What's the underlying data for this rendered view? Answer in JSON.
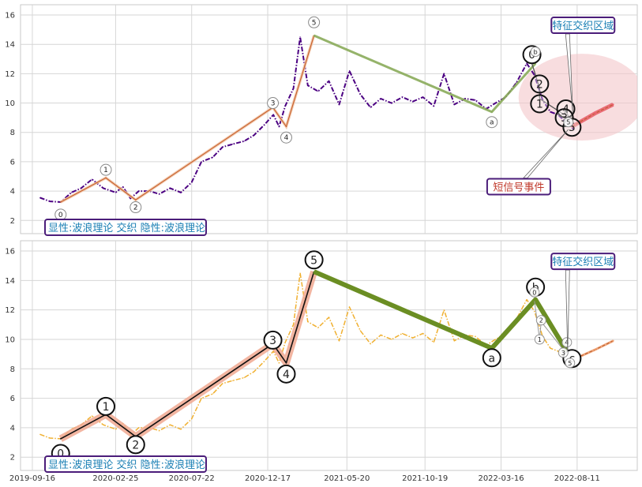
{
  "chart_data": [
    {
      "type": "line",
      "panel": "top",
      "x_tick_labels": [
        "2019-09-16",
        "2020-02-25",
        "2020-07-22",
        "2020-12-17",
        "2021-05-20",
        "2021-10-19",
        "2022-03-16",
        "2022-08-11"
      ],
      "yticks": [
        2,
        4,
        6,
        8,
        10,
        12,
        14,
        16
      ],
      "ylim": [
        1.1,
        16.7
      ],
      "grid": true,
      "price_series": {
        "color": "#4b0082",
        "style": "dash-dot",
        "x": [
          "2019-10-01",
          "2019-10-20",
          "2019-11-10",
          "2019-12-01",
          "2019-12-20",
          "2020-01-10",
          "2020-02-01",
          "2020-02-25",
          "2020-03-10",
          "2020-03-25",
          "2020-04-10",
          "2020-05-01",
          "2020-05-20",
          "2020-06-10",
          "2020-07-01",
          "2020-07-22",
          "2020-08-10",
          "2020-09-01",
          "2020-09-20",
          "2020-10-10",
          "2020-11-01",
          "2020-11-20",
          "2020-12-10",
          "2020-12-28",
          "2021-01-08",
          "2021-01-20",
          "2021-02-05",
          "2021-02-18",
          "2021-03-05",
          "2021-03-25",
          "2021-04-15",
          "2021-05-05",
          "2021-05-25",
          "2021-06-15",
          "2021-07-05",
          "2021-07-25",
          "2021-08-15",
          "2021-09-05",
          "2021-09-25",
          "2021-10-15",
          "2021-11-05",
          "2021-11-25",
          "2021-12-15",
          "2022-01-05",
          "2022-01-25",
          "2022-02-15",
          "2022-03-05",
          "2022-03-25",
          "2022-04-15",
          "2022-05-05",
          "2022-05-20",
          "2022-06-05",
          "2022-06-20",
          "2022-07-05",
          "2022-07-20",
          "2022-08-05"
        ],
        "y": [
          3.55,
          3.3,
          3.25,
          3.9,
          4.2,
          4.8,
          4.2,
          3.9,
          4.3,
          3.5,
          4.0,
          4.0,
          3.8,
          4.2,
          3.9,
          4.6,
          6.0,
          6.3,
          7.0,
          7.2,
          7.4,
          7.8,
          8.5,
          9.2,
          8.4,
          9.8,
          11.0,
          14.5,
          11.2,
          10.8,
          11.5,
          9.9,
          12.2,
          10.6,
          9.7,
          10.3,
          10.0,
          10.4,
          10.1,
          10.4,
          9.8,
          12.0,
          9.9,
          10.3,
          10.2,
          9.6,
          10.0,
          10.4,
          11.4,
          12.7,
          11.9,
          10.2,
          9.4,
          9.2,
          8.7,
          8.2
        ]
      },
      "wave_line": {
        "color": "#c86432",
        "points": [
          {
            "label": "0",
            "x": "2019-11-10",
            "y": 3.25
          },
          {
            "label": "1",
            "x": "2020-02-06",
            "y": 4.9
          },
          {
            "label": "2",
            "x": "2020-04-04",
            "y": 3.4
          },
          {
            "label": "3",
            "x": "2020-12-27",
            "y": 9.7
          },
          {
            "label": "4",
            "x": "2021-01-22",
            "y": 8.4
          },
          {
            "label": "5",
            "x": "2021-03-17",
            "y": 14.6
          }
        ]
      },
      "trend_line": {
        "color": "#8aab5a",
        "points": [
          {
            "label": "5",
            "x": "2021-03-17",
            "y": 14.6
          },
          {
            "label": "a",
            "x": "2022-02-26",
            "y": 9.4
          },
          {
            "label": "b",
            "x": "2022-05-22",
            "y": 12.7
          }
        ]
      },
      "wave_labels": [
        {
          "label": "0",
          "x": "2019-11-10",
          "y": 2.4
        },
        {
          "label": "1",
          "x": "2020-02-06",
          "y": 5.45
        },
        {
          "label": "2",
          "x": "2020-04-04",
          "y": 2.9
        },
        {
          "label": "3",
          "x": "2020-12-27",
          "y": 10.0
        },
        {
          "label": "4",
          "x": "2021-01-22",
          "y": 7.65
        },
        {
          "label": "5",
          "x": "2021-03-17",
          "y": 15.5
        },
        {
          "label": "a",
          "x": "2022-02-26",
          "y": 8.7
        }
      ],
      "feature_labels_large": [
        {
          "label": "0",
          "x": "2022-05-15",
          "y": 13.3
        },
        {
          "label": "2",
          "x": "2022-05-30",
          "y": 11.3
        },
        {
          "label": "1",
          "x": "2022-05-30",
          "y": 9.95
        },
        {
          "label": "4",
          "x": "2022-07-20",
          "y": 9.6
        },
        {
          "label": "3",
          "x": "2022-07-17",
          "y": 9.0
        },
        {
          "label": "5",
          "x": "2022-08-01",
          "y": 8.35
        }
      ],
      "feature_labels_small": [
        {
          "label": "b",
          "x": "2022-05-22",
          "y": 13.5
        },
        {
          "label": "5",
          "x": "2022-07-25",
          "y": 8.7
        }
      ],
      "short_signal": {
        "color": "#e8606a",
        "points": [
          {
            "x": "2022-08-01",
            "y": 8.4
          },
          {
            "x": "2022-09-15",
            "y": 9.3
          },
          {
            "x": "2022-10-20",
            "y": 9.9
          }
        ]
      },
      "annotations": [
        {
          "text": "特征交织区域",
          "x": "2022-06-25",
          "y": 15.3,
          "box_color": "#4b1d7a"
        },
        {
          "text": "短信号事件",
          "x": "2022-02-20",
          "y": 4.3,
          "box_color": "#4b1d7a"
        }
      ],
      "footer_text": "显性:波浪理论 交织 隐性:波浪理论",
      "highlight_region": {
        "fill": "#f4c7c9"
      }
    },
    {
      "type": "line",
      "panel": "bottom",
      "x_tick_labels": [
        "2019-09-16",
        "2020-02-25",
        "2020-07-22",
        "2020-12-17",
        "2021-05-20",
        "2021-10-19",
        "2022-03-16",
        "2022-08-11"
      ],
      "yticks": [
        2,
        4,
        6,
        8,
        10,
        12,
        14,
        16
      ],
      "ylim": [
        1.1,
        16.7
      ],
      "grid": true,
      "price_series": {
        "color": "#f0b030",
        "style": "dash-dot",
        "x": [
          "2019-10-01",
          "2019-10-20",
          "2019-11-10",
          "2019-12-01",
          "2019-12-20",
          "2020-01-10",
          "2020-02-01",
          "2020-02-25",
          "2020-03-10",
          "2020-03-25",
          "2020-04-10",
          "2020-05-01",
          "2020-05-20",
          "2020-06-10",
          "2020-07-01",
          "2020-07-22",
          "2020-08-10",
          "2020-09-01",
          "2020-09-20",
          "2020-10-10",
          "2020-11-01",
          "2020-11-20",
          "2020-12-10",
          "2020-12-28",
          "2021-01-08",
          "2021-01-20",
          "2021-02-05",
          "2021-02-18",
          "2021-03-05",
          "2021-03-25",
          "2021-04-15",
          "2021-05-05",
          "2021-05-25",
          "2021-06-15",
          "2021-07-05",
          "2021-07-25",
          "2021-08-15",
          "2021-09-05",
          "2021-09-25",
          "2021-10-15",
          "2021-11-05",
          "2021-11-25",
          "2021-12-15",
          "2022-01-05",
          "2022-01-25",
          "2022-02-15",
          "2022-03-05",
          "2022-03-25",
          "2022-04-15",
          "2022-05-05",
          "2022-05-20",
          "2022-06-05",
          "2022-06-20",
          "2022-07-05",
          "2022-07-20",
          "2022-08-05"
        ],
        "y": [
          3.55,
          3.3,
          3.25,
          3.9,
          4.2,
          4.8,
          4.2,
          3.9,
          4.3,
          3.5,
          4.0,
          4.0,
          3.8,
          4.2,
          3.9,
          4.6,
          6.0,
          6.3,
          7.0,
          7.2,
          7.4,
          7.8,
          8.5,
          9.2,
          8.4,
          9.8,
          11.0,
          14.5,
          11.2,
          10.8,
          11.5,
          9.9,
          12.2,
          10.6,
          9.7,
          10.3,
          10.0,
          10.4,
          10.1,
          10.4,
          9.8,
          12.0,
          9.9,
          10.3,
          10.2,
          9.6,
          10.0,
          10.4,
          11.4,
          12.7,
          11.9,
          10.2,
          9.4,
          9.2,
          8.7,
          8.2
        ]
      },
      "wave_line": {
        "color": "#111111",
        "band_color": "#f0a890",
        "points": [
          {
            "label": "0",
            "x": "2019-11-10",
            "y": 3.25
          },
          {
            "label": "1",
            "x": "2020-02-06",
            "y": 4.9
          },
          {
            "label": "2",
            "x": "2020-04-04",
            "y": 3.4
          },
          {
            "label": "3",
            "x": "2020-12-27",
            "y": 9.7
          },
          {
            "label": "4",
            "x": "2021-01-22",
            "y": 8.4
          },
          {
            "label": "5",
            "x": "2021-03-17",
            "y": 14.6
          }
        ]
      },
      "trend_line": {
        "color": "#6b8e23",
        "points": [
          {
            "label": "5",
            "x": "2021-03-17",
            "y": 14.6
          },
          {
            "label": "a",
            "x": "2022-02-26",
            "y": 9.4
          },
          {
            "label": "b",
            "x": "2022-05-22",
            "y": 12.7
          },
          {
            "label": "c",
            "x": "2022-08-01",
            "y": 8.6
          }
        ]
      },
      "wave_labels": [
        {
          "label": "0",
          "x": "2019-11-10",
          "y": 2.25
        },
        {
          "label": "1",
          "x": "2020-02-06",
          "y": 5.45
        },
        {
          "label": "2",
          "x": "2020-04-04",
          "y": 2.85
        },
        {
          "label": "3",
          "x": "2020-12-27",
          "y": 9.95
        },
        {
          "label": "4",
          "x": "2021-01-22",
          "y": 7.65
        },
        {
          "label": "5",
          "x": "2021-03-17",
          "y": 15.4
        },
        {
          "label": "a",
          "x": "2022-02-26",
          "y": 8.75
        },
        {
          "label": "b",
          "x": "2022-05-22",
          "y": 13.55
        },
        {
          "label": "c",
          "x": "2022-08-01",
          "y": 8.7
        }
      ],
      "feature_labels_small": [
        {
          "label": "0",
          "x": "2022-05-20",
          "y": 13.2
        },
        {
          "label": "1",
          "x": "2022-05-30",
          "y": 10.0
        },
        {
          "label": "2",
          "x": "2022-06-02",
          "y": 11.3
        },
        {
          "label": "3",
          "x": "2022-07-15",
          "y": 9.1
        },
        {
          "label": "4",
          "x": "2022-07-22",
          "y": 9.8
        },
        {
          "label": "5",
          "x": "2022-07-28",
          "y": 8.4
        }
      ],
      "short_signal": {
        "color": "#f0a070",
        "points": [
          {
            "x": "2022-08-01",
            "y": 8.6
          },
          {
            "x": "2022-09-15",
            "y": 9.3
          },
          {
            "x": "2022-10-20",
            "y": 9.9
          }
        ]
      },
      "annotations": [
        {
          "text": "特征交织区域",
          "x": "2022-06-25",
          "y": 15.3,
          "box_color": "#4b1d7a"
        }
      ],
      "footer_text": "显性:波浪理论 交织 隐性:波浪理论"
    }
  ]
}
